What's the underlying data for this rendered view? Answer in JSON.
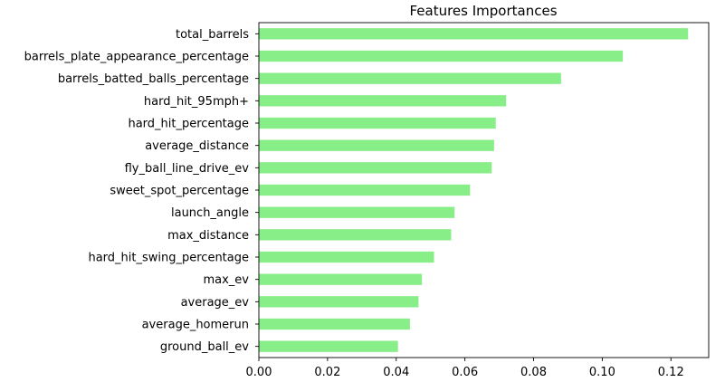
{
  "chart_data": {
    "type": "bar",
    "orientation": "horizontal",
    "title": "Features Importances",
    "xlabel": "",
    "ylabel": "",
    "xlim": [
      0,
      0.131
    ],
    "xticks": [
      0.0,
      0.02,
      0.04,
      0.06,
      0.08,
      0.1,
      0.12
    ],
    "xtick_labels": [
      "0.00",
      "0.02",
      "0.04",
      "0.06",
      "0.08",
      "0.10",
      "0.12"
    ],
    "grid": false,
    "bar_color": "#88ee88",
    "categories": [
      "total_barrels",
      "barrels_plate_appearance_percentage",
      "barrels_batted_balls_percentage",
      "hard_hit_95mph+",
      "hard_hit_percentage",
      "average_distance",
      "fly_ball_line_drive_ev",
      "sweet_spot_percentage",
      "launch_angle",
      "max_distance",
      "hard_hit_swing_percentage",
      "max_ev",
      "average_ev",
      "average_homerun",
      "ground_ball_ev"
    ],
    "values": [
      0.125,
      0.106,
      0.088,
      0.072,
      0.069,
      0.0685,
      0.0678,
      0.0615,
      0.057,
      0.056,
      0.051,
      0.0475,
      0.0465,
      0.044,
      0.0405
    ]
  }
}
